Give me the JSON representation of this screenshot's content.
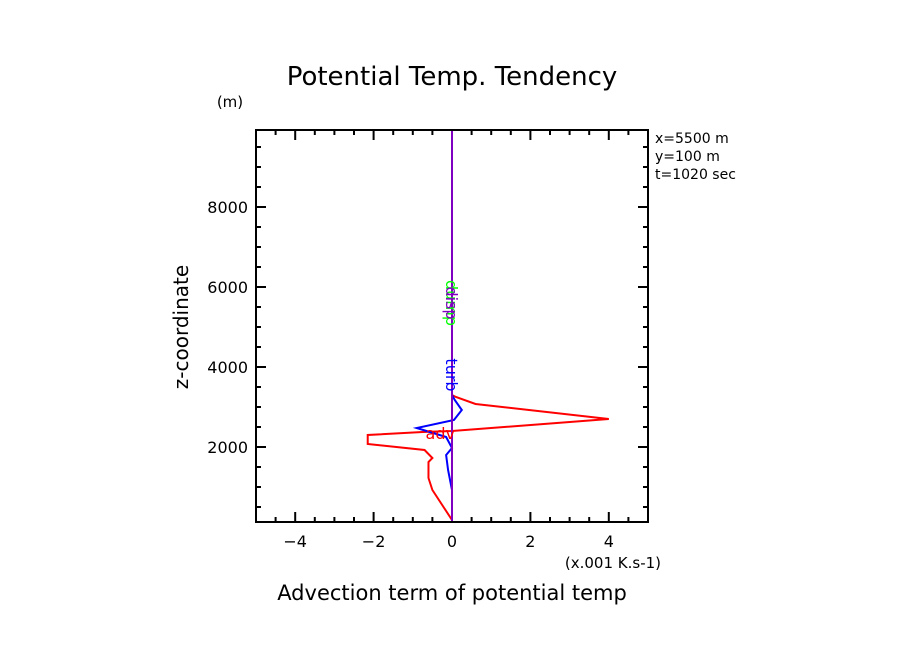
{
  "chart_data": {
    "type": "line",
    "title": "Potential Temp. Tendency",
    "xlabel": "Advection term of potential temp",
    "xunits": "(x.001 K.s-1)",
    "ylabel": "z-coordinate",
    "yunits": "(m)",
    "xlim": [
      -5,
      5
    ],
    "ylim": [
      125,
      9925
    ],
    "xticks": [
      -4,
      -2,
      0,
      2,
      4
    ],
    "xtick_labels": [
      "−4",
      "−2",
      "0",
      "2",
      "4"
    ],
    "yticks": [
      2000,
      4000,
      6000,
      8000
    ],
    "ytick_labels": [
      "2000",
      "4000",
      "6000",
      "8000"
    ],
    "grid": false,
    "info": [
      "x=5500  m",
      "y=100  m",
      "t=1020 sec"
    ],
    "series": [
      {
        "name": "adv",
        "color": "#ff0000",
        "label_at": [
          -0.3,
          2350
        ],
        "x": [
          0,
          -0.2,
          -0.5,
          -0.6,
          -0.6,
          -0.5,
          -0.7,
          -2.15,
          -2.15,
          -0.75,
          0,
          4.0,
          0.6,
          0.1,
          0,
          0
        ],
        "z": [
          175,
          475,
          925,
          1225,
          1625,
          1725,
          1925,
          2075,
          2300,
          2375,
          2400,
          2700,
          3075,
          3250,
          3300,
          9925
        ]
      },
      {
        "name": "turb",
        "color": "#0000ff",
        "label_at": [
          0,
          3800
        ],
        "x": [
          0,
          0,
          -0.1,
          -0.15,
          0,
          -0.15,
          -0.9,
          0.05,
          0.25,
          0.07,
          0,
          0
        ],
        "z": [
          175,
          925,
          1425,
          1800,
          1975,
          2250,
          2475,
          2675,
          2925,
          3175,
          3300,
          9925
        ]
      },
      {
        "name": "dump",
        "color": "#00ff00",
        "label_at": [
          0,
          5600
        ],
        "x": [
          0,
          0
        ],
        "z": [
          125,
          9925
        ]
      },
      {
        "name": "disp",
        "color": "#8000c0",
        "label_at": [
          0,
          5600
        ],
        "x": [
          0,
          0
        ],
        "z": [
          125,
          9925
        ]
      }
    ]
  }
}
